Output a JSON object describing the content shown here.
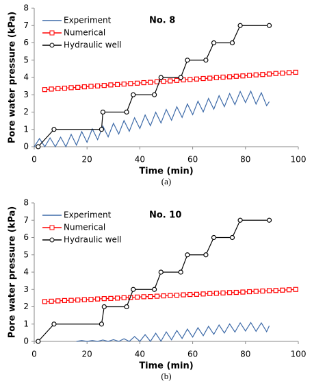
{
  "chart_data": [
    {
      "type": "line",
      "title": "No. 8",
      "caption": "(a)",
      "xlabel": "Time (min)",
      "ylabel": "Pore water pressure (kPa)",
      "xlim": [
        0,
        100
      ],
      "ylim": [
        0,
        8
      ],
      "xticks": [
        0,
        20,
        40,
        60,
        80,
        100
      ],
      "yticks": [
        0,
        1,
        2,
        3,
        4,
        5,
        6,
        7,
        8
      ],
      "series": [
        {
          "name": "Experiment",
          "color": "#3d6aa8",
          "marker": "none",
          "x": [
            0,
            2,
            4,
            6,
            8,
            10,
            12,
            14,
            16,
            18,
            20,
            22,
            24,
            26,
            28,
            30,
            32,
            34,
            36,
            38,
            40,
            42,
            44,
            46,
            48,
            50,
            52,
            54,
            56,
            58,
            60,
            62,
            64,
            66,
            68,
            70,
            72,
            74,
            76,
            78,
            80,
            82,
            84,
            86,
            88,
            89
          ],
          "values": [
            0,
            0.47,
            0,
            0.51,
            0,
            0.55,
            0,
            0.71,
            0.09,
            0.87,
            0.25,
            1.03,
            0.41,
            1.19,
            0.57,
            1.35,
            0.73,
            1.51,
            0.89,
            1.67,
            1.05,
            1.83,
            1.21,
            1.99,
            1.37,
            2.15,
            1.53,
            2.31,
            1.69,
            2.47,
            1.85,
            2.63,
            2.01,
            2.79,
            2.17,
            2.95,
            2.31,
            3.07,
            2.43,
            3.19,
            2.55,
            3.21,
            2.46,
            3.12,
            2.37,
            2.6
          ]
        },
        {
          "name": "Numerical",
          "color": "#ff0000",
          "marker": "square",
          "x": [
            4,
            6.5,
            9,
            11.5,
            14,
            16.5,
            19,
            21.5,
            24,
            26.5,
            29,
            31.5,
            34,
            36.5,
            39,
            41.5,
            44,
            46.5,
            49,
            51.5,
            54,
            56.5,
            59,
            61.5,
            64,
            66.5,
            69,
            71.5,
            74,
            76.5,
            79,
            81.5,
            84,
            86.5,
            89,
            91.5,
            94,
            96.5,
            99
          ],
          "values": [
            3.3,
            3.33,
            3.35,
            3.38,
            3.41,
            3.43,
            3.46,
            3.49,
            3.51,
            3.54,
            3.57,
            3.59,
            3.62,
            3.65,
            3.67,
            3.7,
            3.72,
            3.75,
            3.78,
            3.8,
            3.83,
            3.86,
            3.88,
            3.91,
            3.94,
            3.96,
            3.99,
            4.02,
            4.04,
            4.07,
            4.09,
            4.12,
            4.15,
            4.17,
            4.2,
            4.23,
            4.25,
            4.28,
            4.3
          ]
        },
        {
          "name": "Hydraulic well",
          "color": "#000000",
          "marker": "circle",
          "x": [
            1.5,
            7.5,
            25.5,
            26,
            35,
            37.5,
            45.5,
            48,
            55.5,
            58,
            65,
            68,
            75,
            78,
            89
          ],
          "values": [
            0,
            1,
            1,
            2,
            2,
            3,
            3,
            4,
            4,
            5,
            5,
            6,
            6,
            7,
            7
          ]
        }
      ]
    },
    {
      "type": "line",
      "title": "No. 10",
      "caption": "(b)",
      "xlabel": "Time (min)",
      "ylabel": "Pore water pressure (kPa)",
      "xlim": [
        0,
        100
      ],
      "ylim": [
        0,
        8
      ],
      "xticks": [
        0,
        20,
        40,
        60,
        80,
        100
      ],
      "yticks": [
        0,
        1,
        2,
        3,
        4,
        5,
        6,
        7,
        8
      ],
      "series": [
        {
          "name": "Experiment",
          "color": "#3d6aa8",
          "marker": "none",
          "x": [
            16,
            18,
            20,
            22,
            24,
            26,
            28,
            30,
            32,
            34,
            36,
            38,
            40,
            42,
            44,
            46,
            48,
            50,
            52,
            54,
            56,
            58,
            60,
            62,
            64,
            66,
            68,
            70,
            72,
            74,
            76,
            78,
            80,
            82,
            84,
            86,
            88,
            89
          ],
          "values": [
            0,
            0.05,
            0,
            0.05,
            0,
            0.08,
            0,
            0.1,
            0,
            0.15,
            0,
            0.28,
            0,
            0.39,
            0,
            0.47,
            0.01,
            0.55,
            0.09,
            0.63,
            0.17,
            0.71,
            0.25,
            0.79,
            0.33,
            0.87,
            0.41,
            0.95,
            0.48,
            1.01,
            0.54,
            1.07,
            0.6,
            1.09,
            0.58,
            1.07,
            0.56,
            0.9
          ]
        },
        {
          "name": "Numerical",
          "color": "#ff0000",
          "marker": "square",
          "x": [
            4,
            6.5,
            9,
            11.5,
            14,
            16.5,
            19,
            21.5,
            24,
            26.5,
            29,
            31.5,
            34,
            36.5,
            39,
            41.5,
            44,
            46.5,
            49,
            51.5,
            54,
            56.5,
            59,
            61.5,
            64,
            66.5,
            69,
            71.5,
            74,
            76.5,
            79,
            81.5,
            84,
            86.5,
            89,
            91.5,
            94,
            96.5,
            99
          ],
          "values": [
            2.3,
            2.32,
            2.34,
            2.36,
            2.37,
            2.39,
            2.41,
            2.43,
            2.45,
            2.47,
            2.48,
            2.5,
            2.52,
            2.54,
            2.56,
            2.58,
            2.59,
            2.61,
            2.63,
            2.65,
            2.67,
            2.69,
            2.71,
            2.72,
            2.74,
            2.76,
            2.78,
            2.8,
            2.82,
            2.83,
            2.85,
            2.87,
            2.89,
            2.91,
            2.93,
            2.94,
            2.96,
            2.98,
            3.0
          ]
        },
        {
          "name": "Hydraulic well",
          "color": "#000000",
          "marker": "circle",
          "x": [
            1.5,
            7.5,
            25.5,
            26.5,
            35,
            37.5,
            45.5,
            48,
            55.5,
            58,
            65,
            68,
            75,
            78,
            89
          ],
          "values": [
            0,
            1,
            1,
            2,
            2,
            3,
            3,
            4,
            4,
            5,
            5,
            6,
            6,
            7,
            7
          ]
        }
      ]
    }
  ]
}
